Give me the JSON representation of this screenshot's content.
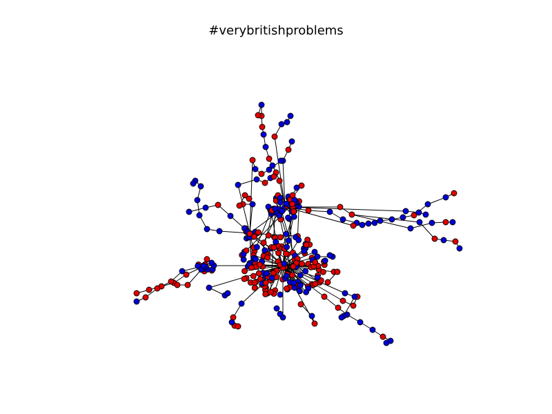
{
  "figure": {
    "title": "#verybritishproblems"
  },
  "colors": {
    "background": "#ffffff",
    "edge": "#000000",
    "node_red": "#e00000",
    "node_blue": "#0000d8",
    "node_outline": "#000000"
  },
  "chart_data": {
    "type": "network",
    "title": "#verybritishproblems",
    "node_color_classes": [
      "red",
      "blue"
    ],
    "hubs": [
      {
        "id": "main",
        "color": "red"
      },
      {
        "id": "north",
        "color": "blue"
      },
      {
        "id": "west",
        "color": "red"
      },
      {
        "id": "southwest",
        "color": "blue"
      }
    ],
    "branches": [
      {
        "id": "north-spur",
        "from": "north"
      },
      {
        "id": "east-spur",
        "from": "north"
      },
      {
        "id": "southwest-spur",
        "from": "main"
      },
      {
        "id": "southeast-spur",
        "from": "main"
      },
      {
        "id": "northwest-spur",
        "from": "west"
      }
    ]
  }
}
